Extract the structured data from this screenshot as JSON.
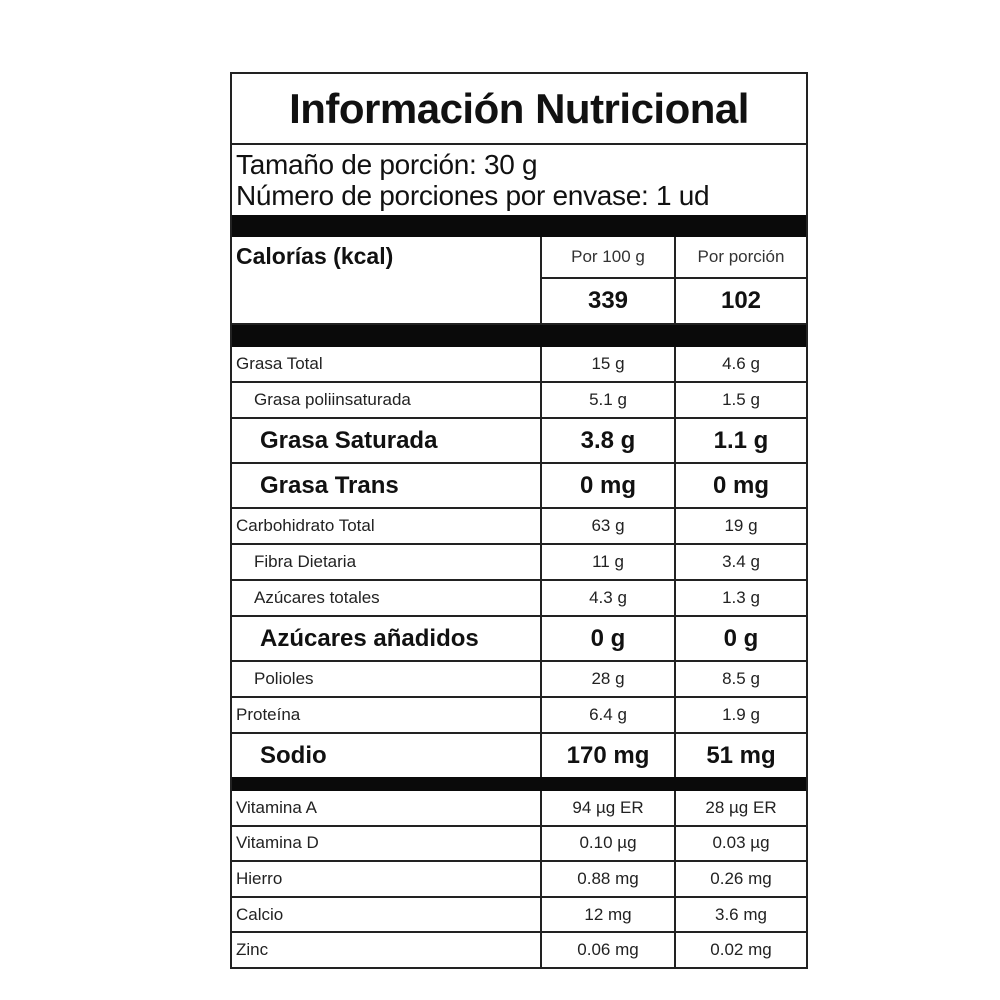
{
  "title": "Información Nutricional",
  "serving_size": "Tamaño de porción: 30 g",
  "servings_per_container": "Número de porciones por envase: 1 ud",
  "calories": {
    "label": "Calorías (kcal)",
    "col1_header": "Por 100 g",
    "col2_header": "Por porción",
    "per_100g": "339",
    "per_serving": "102"
  },
  "nutrients": [
    {
      "name": "Grasa Total",
      "per_100g": "15 g",
      "per_serving": "4.6 g"
    },
    {
      "name": "Grasa poliinsaturada",
      "per_100g": "5.1 g",
      "per_serving": "1.5 g"
    },
    {
      "name": "Grasa Saturada",
      "per_100g": "3.8 g",
      "per_serving": "1.1 g"
    },
    {
      "name": "Grasa Trans",
      "per_100g": "0 mg",
      "per_serving": "0 mg"
    },
    {
      "name": "Carbohidrato Total",
      "per_100g": "63 g",
      "per_serving": "19 g"
    },
    {
      "name": "Fibra Dietaria",
      "per_100g": "11 g",
      "per_serving": "3.4 g"
    },
    {
      "name": "Azúcares totales",
      "per_100g": "4.3 g",
      "per_serving": "1.3 g"
    },
    {
      "name": "Azúcares añadidos",
      "per_100g": "0 g",
      "per_serving": "0 g"
    },
    {
      "name": "Polioles",
      "per_100g": "28 g",
      "per_serving": "8.5 g"
    },
    {
      "name": "Proteína",
      "per_100g": "6.4 g",
      "per_serving": "1.9 g"
    },
    {
      "name": "Sodio",
      "per_100g": "170 mg",
      "per_serving": "51 mg"
    }
  ],
  "micronutrients": [
    {
      "name": "Vitamina A",
      "per_100g": "94 µg ER",
      "per_serving": "28 µg ER"
    },
    {
      "name": "Vitamina D",
      "per_100g": "0.10 µg",
      "per_serving": "0.03 µg"
    },
    {
      "name": "Hierro",
      "per_100g": "0.88 mg",
      "per_serving": "0.26 mg"
    },
    {
      "name": "Calcio",
      "per_100g": "12 mg",
      "per_serving": "3.6 mg"
    },
    {
      "name": "Zinc",
      "per_100g": "0.06 mg",
      "per_serving": "0.02 mg"
    }
  ]
}
